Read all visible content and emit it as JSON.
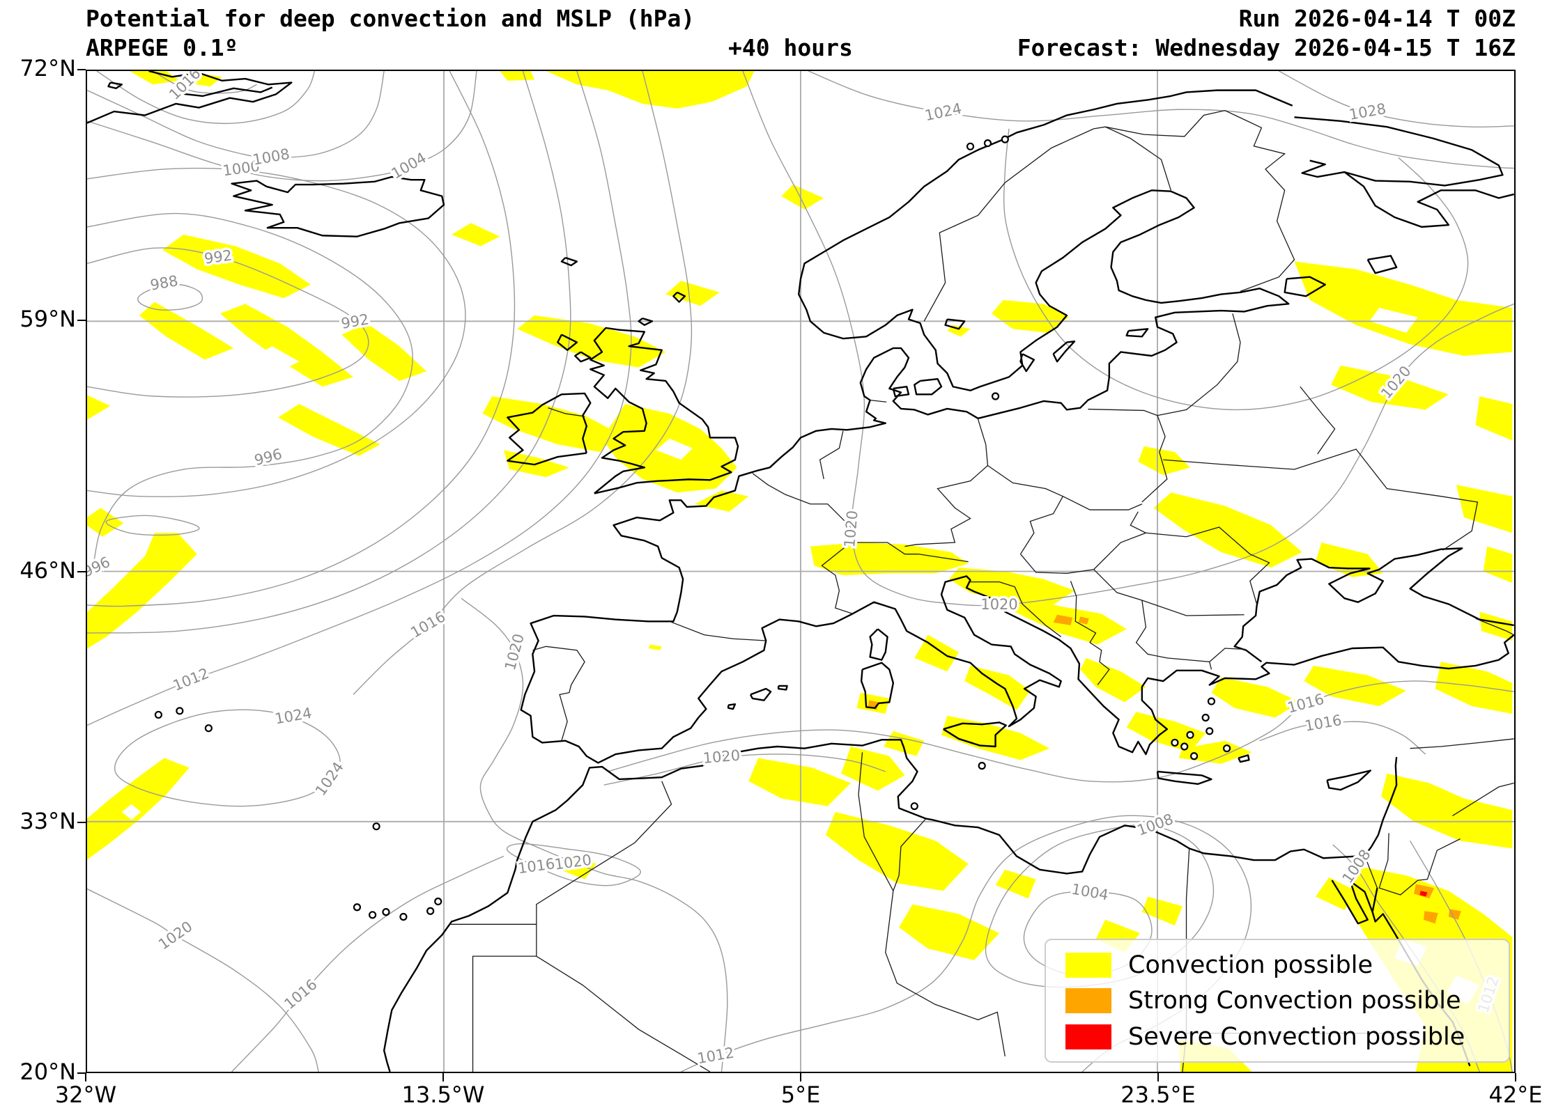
{
  "header": {
    "title": "Potential for deep convection and MSLP (hPa)",
    "model": "ARPEGE 0.1º",
    "lead": "+40 hours",
    "run": "Run 2026-04-14 T 00Z",
    "forecast": "Forecast: Wednesday 2026-04-15 T 16Z"
  },
  "axes": {
    "lat_ticks": [
      {
        "label": "72°N",
        "lat": 72
      },
      {
        "label": "59°N",
        "lat": 59
      },
      {
        "label": "46°N",
        "lat": 46
      },
      {
        "label": "33°N",
        "lat": 33
      },
      {
        "label": "20°N",
        "lat": 20
      }
    ],
    "lon_ticks": [
      {
        "label": "32°W",
        "lon": -32
      },
      {
        "label": "13.5°W",
        "lon": -13.5
      },
      {
        "label": "5°E",
        "lon": 5
      },
      {
        "label": "23.5°E",
        "lon": 23.5
      },
      {
        "label": "42°E",
        "lon": 42
      }
    ]
  },
  "legend": {
    "items": [
      {
        "label": "Convection possible",
        "color": "#ffff00"
      },
      {
        "label": "Strong Convection possible",
        "color": "#ffa500"
      },
      {
        "label": "Severe Convection possible",
        "color": "#ff0000"
      }
    ]
  },
  "isobar_labels": [
    {
      "value": "988",
      "lon": -28.0,
      "lat": 60.95,
      "rot": -10
    },
    {
      "value": "992",
      "lon": -25.2,
      "lat": 62.3,
      "rot": -8
    },
    {
      "value": "992",
      "lon": -18.1,
      "lat": 58.95,
      "rot": -10
    },
    {
      "value": "996",
      "lon": -22.6,
      "lat": 51.9,
      "rot": -15
    },
    {
      "value": "996",
      "lon": -31.5,
      "lat": 46.2,
      "rot": -25
    },
    {
      "value": "1000",
      "lon": -24.0,
      "lat": 66.9,
      "rot": -8
    },
    {
      "value": "1004",
      "lon": -15.3,
      "lat": 67.05,
      "rot": -30
    },
    {
      "value": "1008",
      "lon": -22.45,
      "lat": 67.5,
      "rot": -10
    },
    {
      "value": "1016",
      "lon": -26.9,
      "lat": 71.3,
      "rot": -45
    },
    {
      "value": "1024",
      "lon": 12.4,
      "lat": 69.83,
      "rot": -12
    },
    {
      "value": "1028",
      "lon": 34.4,
      "lat": 69.85,
      "rot": -10
    },
    {
      "value": "1024",
      "lon": -21.3,
      "lat": 38.45,
      "rot": -10
    },
    {
      "value": "1024",
      "lon": -19.4,
      "lat": 35.2,
      "rot": -55
    },
    {
      "value": "1020",
      "lon": -27.4,
      "lat": 27.05,
      "rot": -35
    },
    {
      "value": "1016",
      "lon": -20.9,
      "lat": 24.0,
      "rot": -40
    },
    {
      "value": "1012",
      "lon": -26.6,
      "lat": 40.35,
      "rot": -22
    },
    {
      "value": "1016",
      "lon": -14.3,
      "lat": 43.2,
      "rot": -30
    },
    {
      "value": "1020",
      "lon": -9.8,
      "lat": 41.8,
      "rot": -75
    },
    {
      "value": "1020",
      "lon": 7.65,
      "lat": 48.2,
      "rot": -85
    },
    {
      "value": "1020",
      "lon": 15.3,
      "lat": 44.25,
      "rot": 0
    },
    {
      "value": "1020",
      "lon": 35.9,
      "lat": 55.8,
      "rot": -50
    },
    {
      "value": "1016",
      "lon": 31.2,
      "lat": 39.1,
      "rot": -15
    },
    {
      "value": "1016",
      "lon": 32.1,
      "lat": 38.08,
      "rot": -10
    },
    {
      "value": "1020",
      "lon": 0.9,
      "lat": 36.33,
      "rot": -5
    },
    {
      "value": "1016",
      "lon": -8.7,
      "lat": 30.65,
      "rot": -8
    },
    {
      "value": "1020",
      "lon": -6.8,
      "lat": 30.85,
      "rot": -8
    },
    {
      "value": "1012",
      "lon": 0.6,
      "lat": 20.8,
      "rot": -10
    },
    {
      "value": "1008",
      "lon": 23.4,
      "lat": 32.8,
      "rot": -20
    },
    {
      "value": "1004",
      "lon": 20.0,
      "lat": 29.3,
      "rot": 10
    },
    {
      "value": "1008",
      "lon": 33.85,
      "lat": 30.65,
      "rot": -55
    },
    {
      "value": "1012",
      "lon": 40.7,
      "lat": 24.0,
      "rot": -72
    }
  ],
  "map_meta": {
    "field": "MSLP (hPa)",
    "labeled_contours": [
      988,
      992,
      996,
      1000,
      1004,
      1008,
      1012,
      1016,
      1020,
      1024,
      1028
    ],
    "convection_categories": {
      "possible": "#ffff00",
      "strong": "#ffa500",
      "severe": "#ff0000"
    }
  }
}
